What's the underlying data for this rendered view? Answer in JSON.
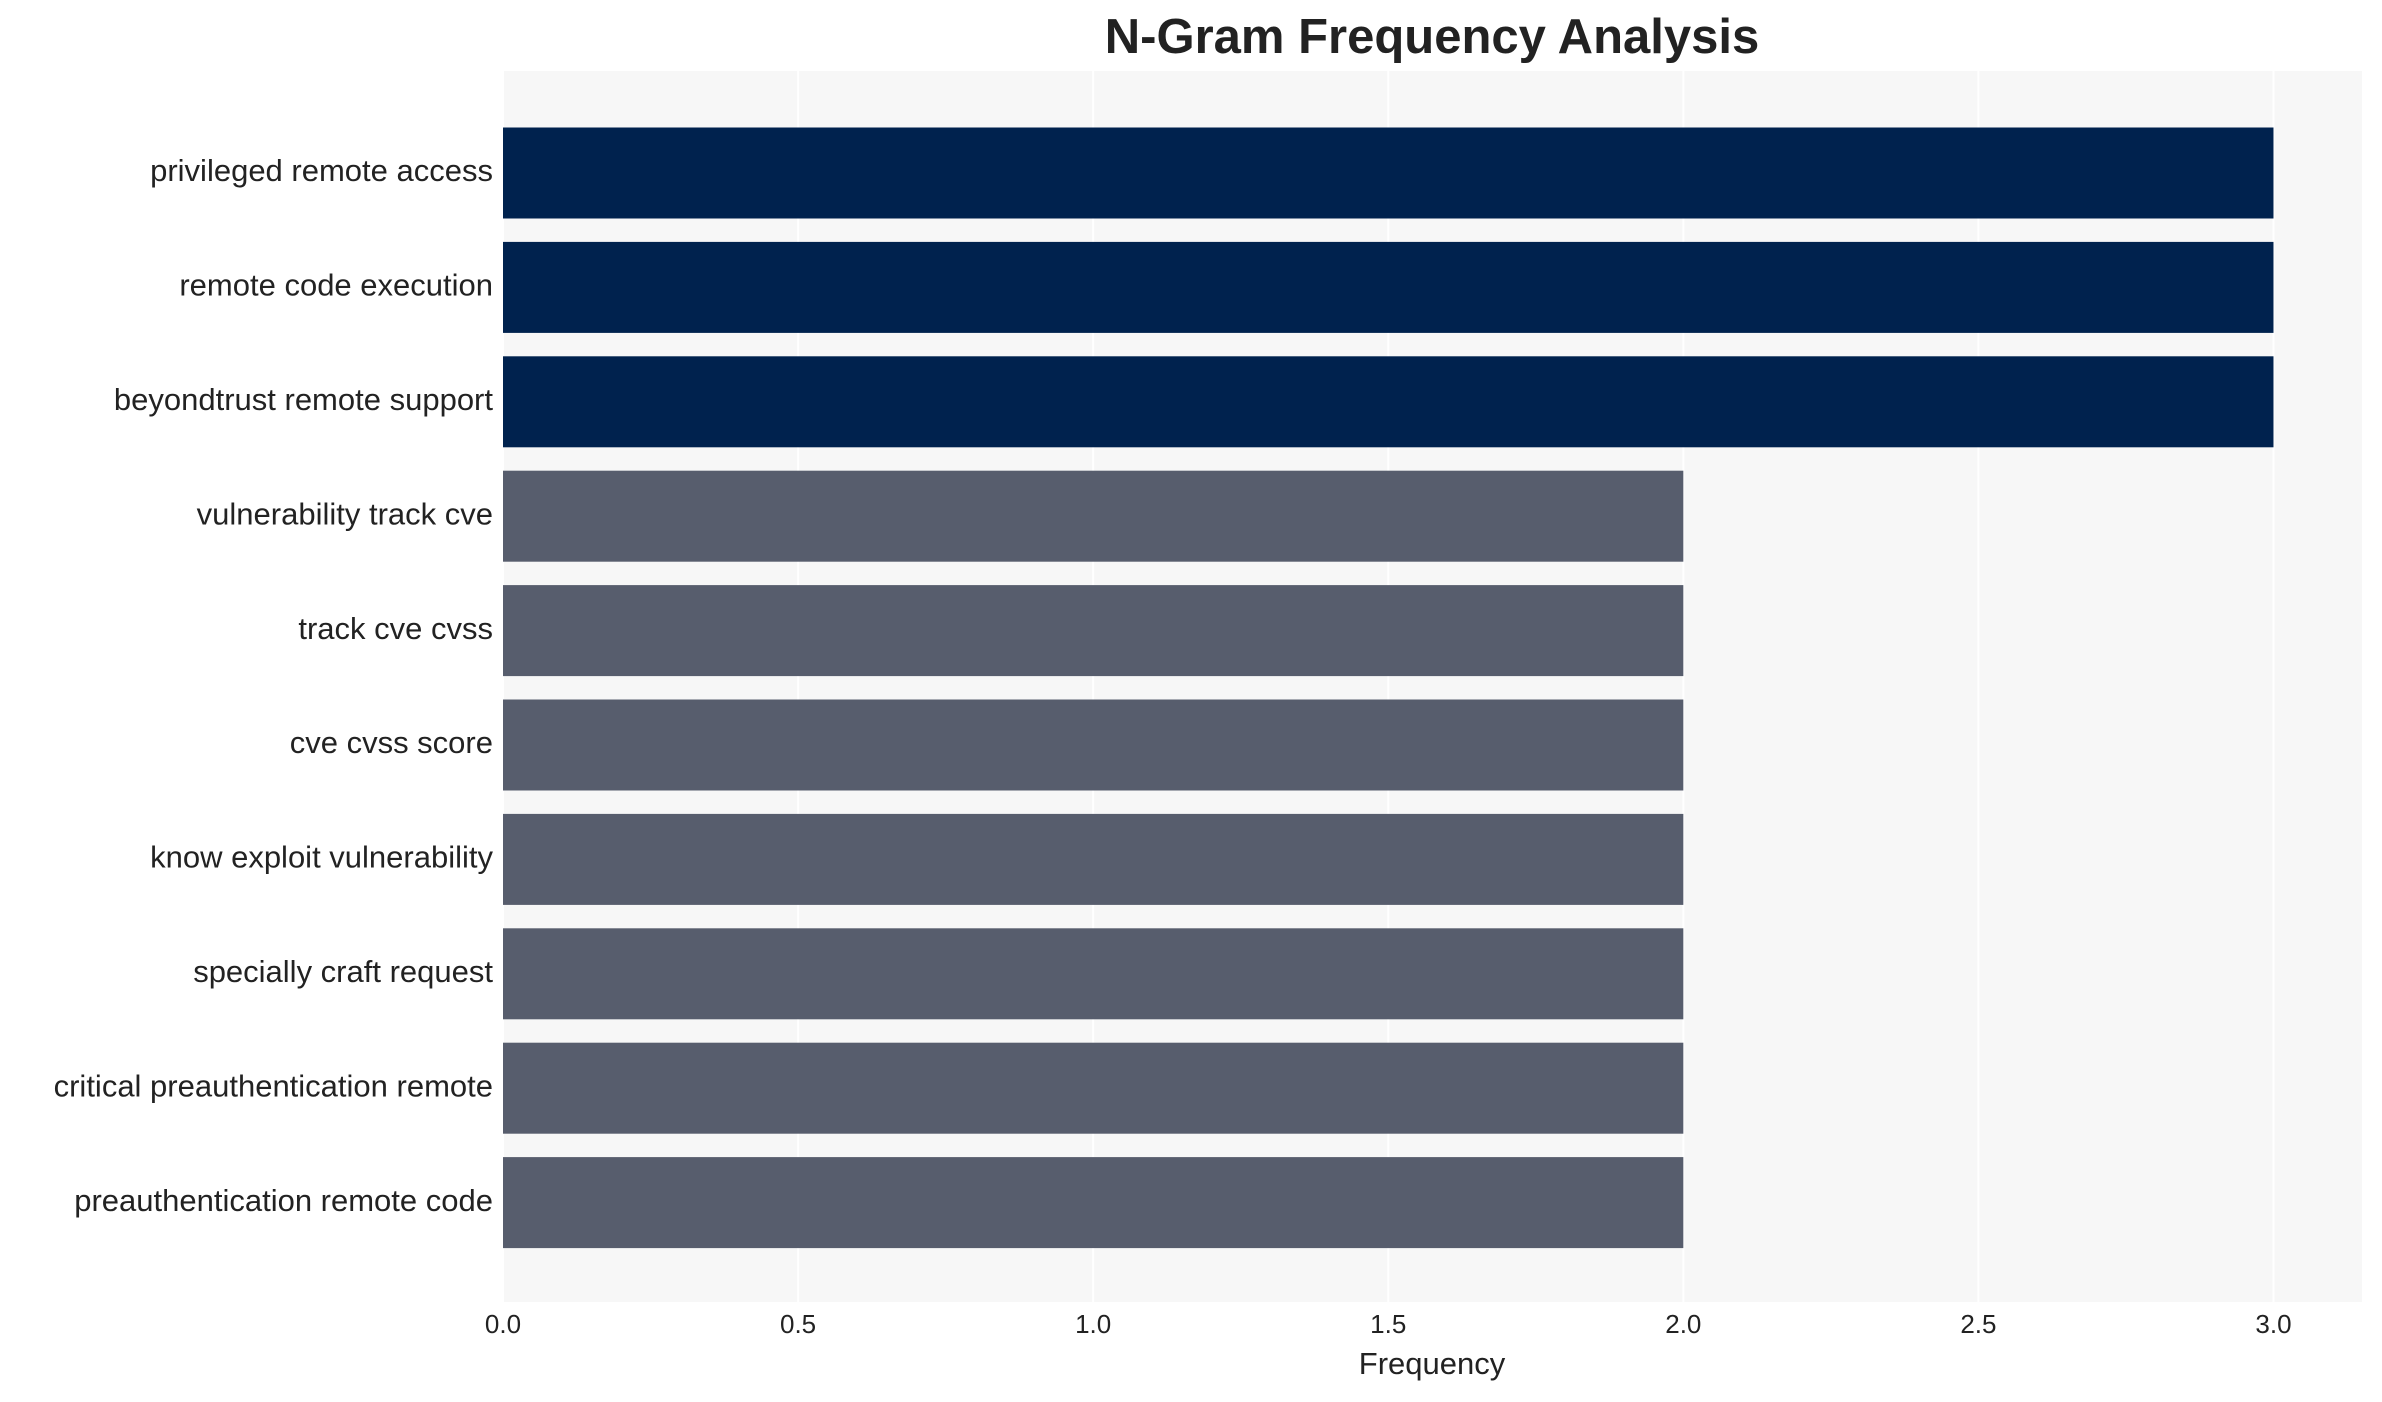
{
  "chart_data": {
    "type": "barh",
    "title": "N-Gram Frequency Analysis",
    "x_label": "Frequency",
    "categories": [
      "privileged remote access",
      "remote code execution",
      "beyondtrust remote support",
      "vulnerability track cve",
      "track cve cvss",
      "cve cvss score",
      "know exploit vulnerability",
      "specially craft request",
      "critical preauthentication remote",
      "preauthentication remote code"
    ],
    "values": [
      3,
      3,
      3,
      2,
      2,
      2,
      2,
      2,
      2,
      2
    ],
    "colors": [
      "#00224e",
      "#00224e",
      "#00224e",
      "#575d6d",
      "#575d6d",
      "#575d6d",
      "#575d6d",
      "#575d6d",
      "#575d6d",
      "#575d6d"
    ],
    "xlim": [
      0,
      3.15
    ],
    "xticks": [
      {
        "value": 0,
        "label": "0.0"
      },
      {
        "value": 0.5,
        "label": "0.5"
      },
      {
        "value": 1,
        "label": "1.0"
      },
      {
        "value": 1.5,
        "label": "1.5"
      },
      {
        "value": 2,
        "label": "2.0"
      },
      {
        "value": 2.5,
        "label": "2.5"
      },
      {
        "value": 3,
        "label": "3.0"
      }
    ],
    "grid": true
  }
}
